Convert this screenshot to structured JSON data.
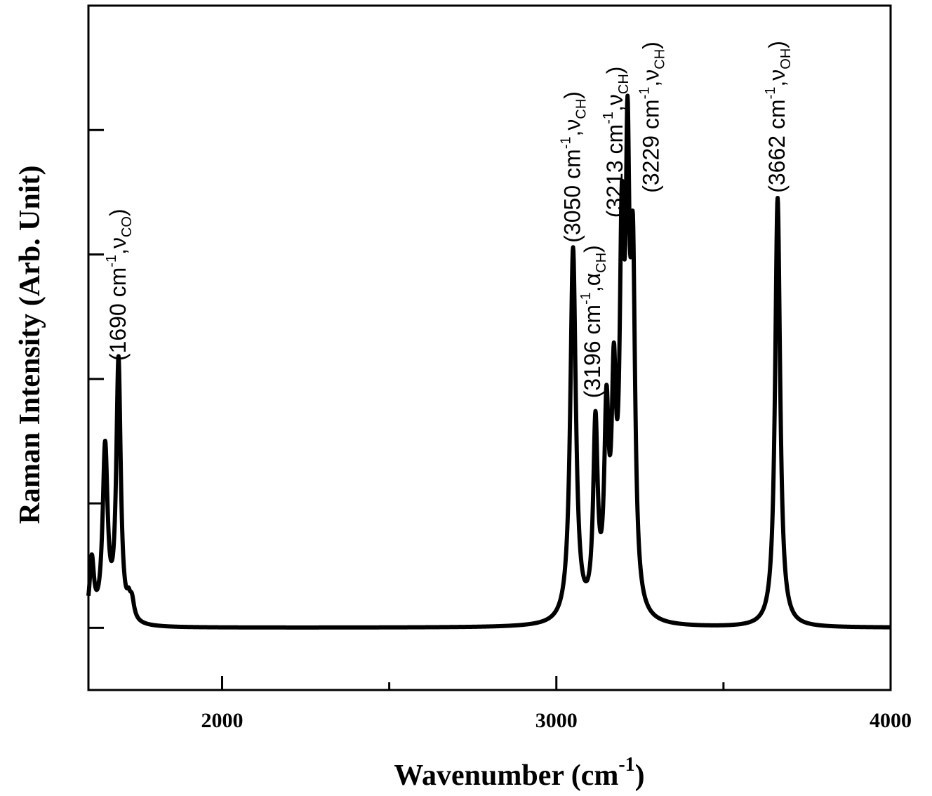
{
  "chart_data": {
    "type": "line",
    "title": "",
    "xlabel": "Wavenumber (cm",
    "xlabel_sup": "-1",
    "xlabel_close": ")",
    "ylabel": "Raman Intensity (Arb. Unit)",
    "xlim": [
      1600,
      4000
    ],
    "ylim": [
      -0.1,
      1.0
    ],
    "x_ticks": [
      2000,
      3000,
      4000
    ],
    "x_minor_ticks": [
      2500,
      3500
    ],
    "y_ticks_unlabeled": [
      0,
      0.2,
      0.4,
      0.6,
      0.8
    ],
    "grid": false,
    "series": [
      {
        "color": "#000000",
        "peaks": [
          {
            "center": 1610,
            "height": 0.1,
            "width": 8
          },
          {
            "center": 1650,
            "height": 0.28,
            "width": 9
          },
          {
            "center": 1690,
            "height": 0.42,
            "width": 8
          },
          {
            "center": 1720,
            "height": 0.02,
            "width": 6
          },
          {
            "center": 1730,
            "height": 0.03,
            "width": 8
          },
          {
            "center": 3050,
            "height": 0.6,
            "width": 10
          },
          {
            "center": 3117,
            "height": 0.3,
            "width": 8
          },
          {
            "center": 3150,
            "height": 0.3,
            "width": 8
          },
          {
            "center": 3172,
            "height": 0.33,
            "width": 8
          },
          {
            "center": 3196,
            "height": 0.55,
            "width": 8
          },
          {
            "center": 3213,
            "height": 0.63,
            "width": 7
          },
          {
            "center": 3229,
            "height": 0.52,
            "width": 8
          },
          {
            "center": 3662,
            "height": 0.69,
            "width": 9
          }
        ]
      }
    ],
    "annotations": [
      {
        "x": 1690,
        "y": 0.42,
        "main": "(1690 cm",
        "sup": "-1",
        "mid": ",ν",
        "sub": "CO",
        "end": ")"
      },
      {
        "x": 3050,
        "y": 0.61,
        "main": "(3050 cm",
        "sup": "-1",
        "mid": ",ν",
        "sub": "CH",
        "end": ")"
      },
      {
        "x": 3110,
        "y": 0.36,
        "main": "(3196 cm",
        "sup": "-1",
        "mid": ",α",
        "sub": "CH",
        "end": ")"
      },
      {
        "x": 3177,
        "y": 0.65,
        "main": "(3213 cm",
        "sup": "-1",
        "mid": ",ν",
        "sub": "CH",
        "end": ")"
      },
      {
        "x": 3285,
        "y": 0.69,
        "main": "(3229 cm",
        "sup": "-1",
        "mid": ",ν",
        "sub": "CH",
        "end": ")"
      },
      {
        "x": 3662,
        "y": 0.69,
        "main": "(3662 cm",
        "sup": "-1",
        "mid": ",ν",
        "sub": "OH",
        "end": ")"
      }
    ]
  }
}
